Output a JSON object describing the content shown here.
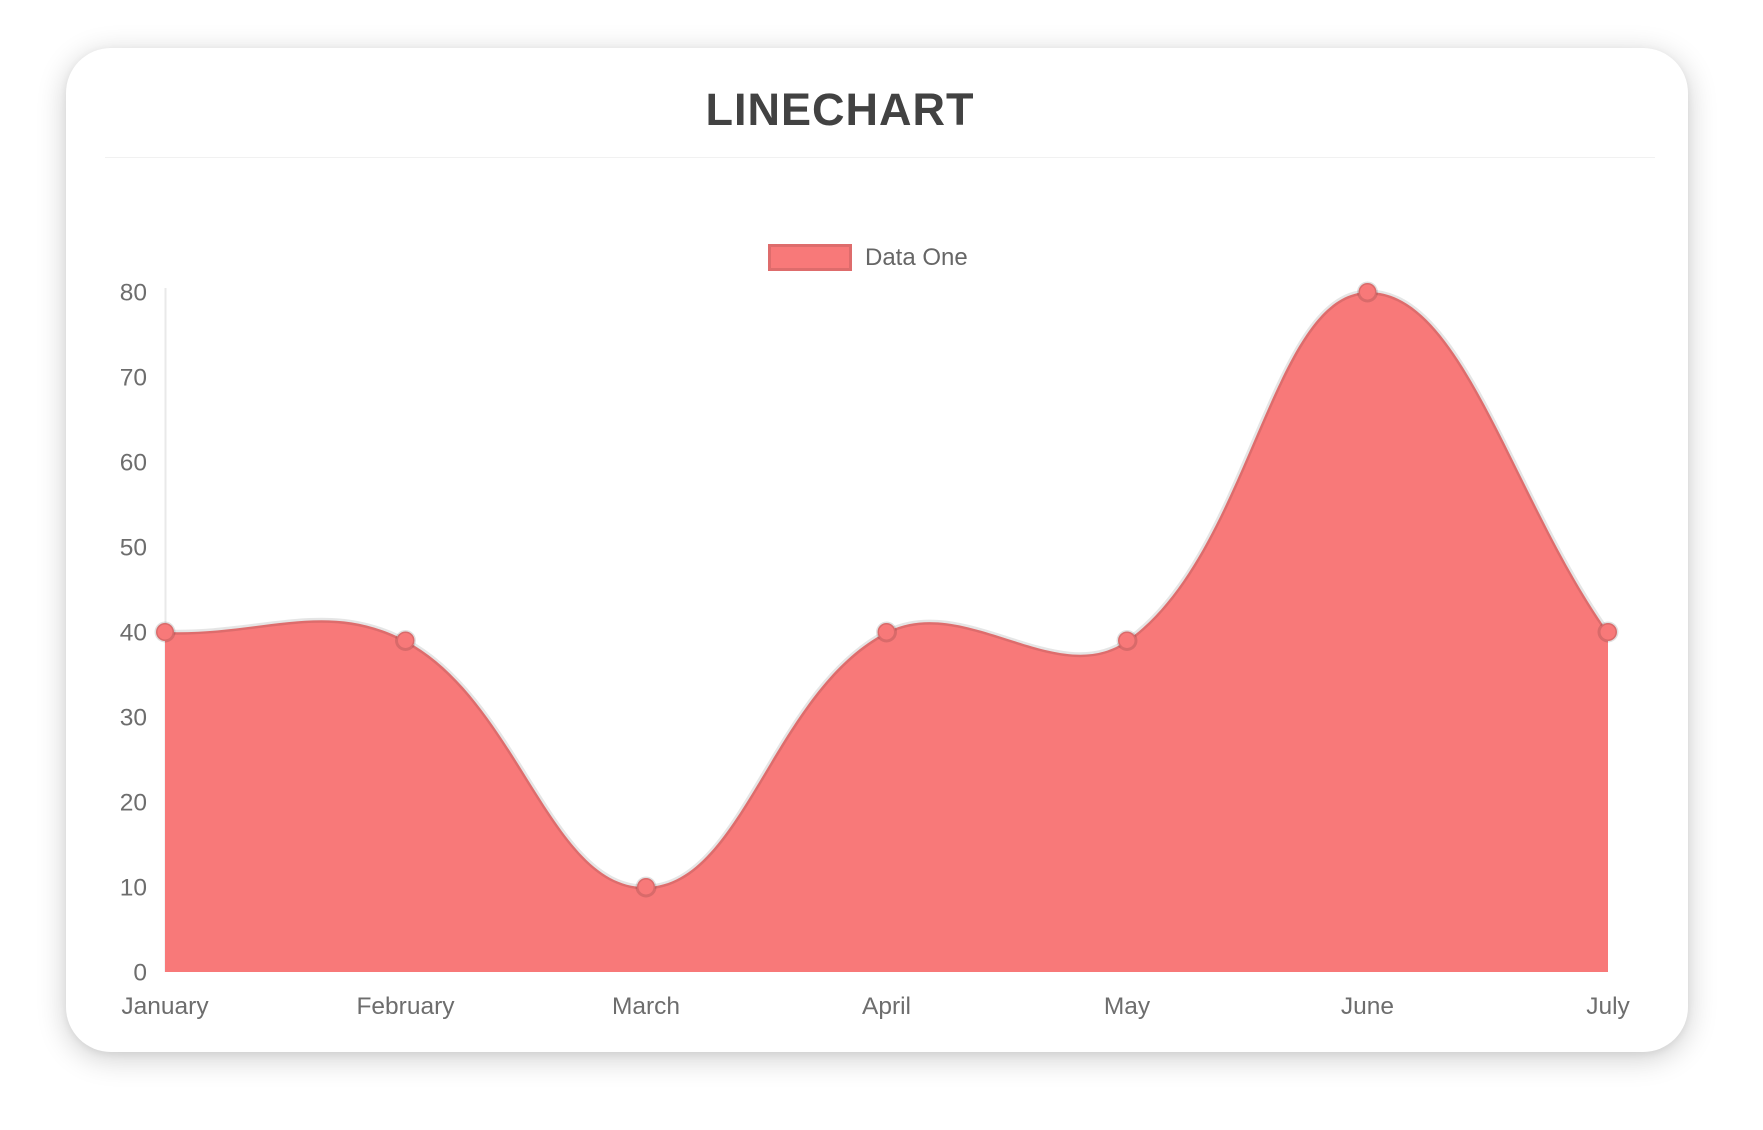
{
  "title": "LINECHART",
  "chart_data": {
    "type": "area",
    "title": "LINECHART",
    "categories": [
      "January",
      "February",
      "March",
      "April",
      "May",
      "June",
      "July"
    ],
    "series": [
      {
        "name": "Data One",
        "values": [
          40,
          39,
          10,
          40,
          39,
          80,
          40
        ],
        "fill_color": "#f87979",
        "line_color": "rgba(0,0,0,0.10)",
        "point_fill": "#f87979",
        "point_border": "rgba(0,0,0,0.12)"
      }
    ],
    "xlabel": "",
    "ylabel": "",
    "ylim": [
      0,
      80
    ],
    "yticks": [
      0,
      10,
      20,
      30,
      40,
      50,
      60,
      70,
      80
    ],
    "grid": false,
    "legend_position": "top",
    "line_tension": 0.4,
    "axis_line_color": "#e9e9e9",
    "tick_color": "#6d6d6d"
  }
}
